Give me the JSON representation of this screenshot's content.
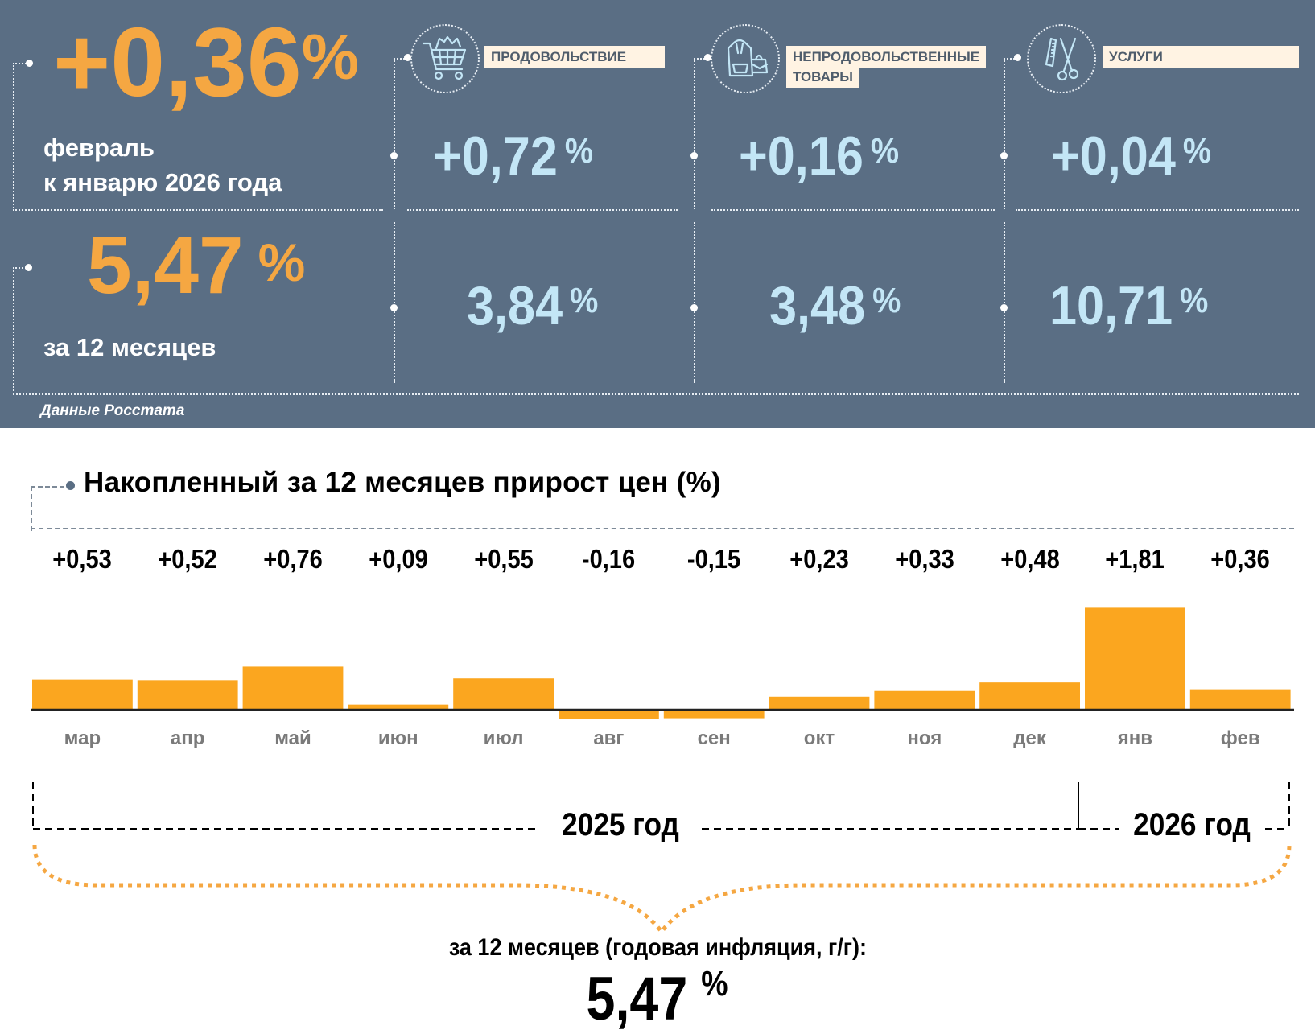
{
  "summary": {
    "monthly": {
      "value": "+0,36",
      "unit": "%",
      "label_line1": "февраль",
      "label_line2": "к январю 2026 года"
    },
    "annual": {
      "value": "5,47",
      "unit": "%",
      "label": "за 12 месяцев"
    },
    "source": "Данные Росстата"
  },
  "categories": [
    {
      "name": "ПРОДОВОЛЬСТВИЕ",
      "icon": "shopping-cart-icon",
      "monthly": "+0,72",
      "annual": "3,84",
      "unit": "%"
    },
    {
      "name_line1": "НЕПРОДОВОЛЬСТВЕННЫЕ",
      "name_line2": "ТОВАРЫ",
      "icon": "clothing-bag-icon",
      "monthly": "+0,16",
      "annual": "3,48",
      "unit": "%"
    },
    {
      "name": "УСЛУГИ",
      "icon": "comb-scissors-icon",
      "monthly": "+0,04",
      "annual": "10,71",
      "unit": "%"
    }
  ],
  "colors": {
    "panel": "#5a6e84",
    "accent_orange": "#f5a742",
    "bar": "#fba61f",
    "light_blue": "#c3e6f6",
    "tag_bg": "#fff3e3"
  },
  "chart_data": {
    "type": "bar",
    "title": "Накопленный за 12 месяцев прирост цен (%)",
    "categories": [
      "мар",
      "апр",
      "май",
      "июн",
      "июл",
      "авг",
      "сен",
      "окт",
      "ноя",
      "дек",
      "янв",
      "фев"
    ],
    "values": [
      0.53,
      0.52,
      0.76,
      0.09,
      0.55,
      -0.16,
      -0.15,
      0.23,
      0.33,
      0.48,
      1.81,
      0.36
    ],
    "value_labels": [
      "+0,53",
      "+0,52",
      "+0,76",
      "+0,09",
      "+0,55",
      "-0,16",
      "-0,15",
      "+0,23",
      "+0,33",
      "+0,48",
      "+1,81",
      "+0,36"
    ],
    "xlabel": "",
    "ylabel": "%",
    "ylim": [
      -0.2,
      1.9
    ],
    "grid": false,
    "year_groups": [
      {
        "label": "2025 год",
        "months": [
          "мар",
          "апр",
          "май",
          "июн",
          "июл",
          "авг",
          "сен",
          "окт",
          "ноя",
          "дек"
        ]
      },
      {
        "label": "2026 год",
        "months": [
          "янв",
          "фев"
        ]
      }
    ],
    "total_label": "за 12 месяцев (годовая инфляция, г/г):",
    "total_value": "5,47",
    "total_unit": "%"
  }
}
